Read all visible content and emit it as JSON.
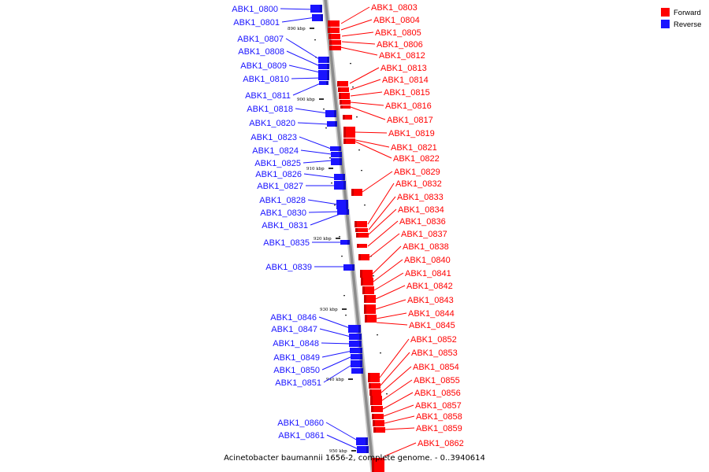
{
  "colors": {
    "forward": "#ff0000",
    "reverse": "#1a14ff",
    "axis": "#8c8c8c"
  },
  "legend": {
    "forward": "Forward",
    "reverse": "Reverse"
  },
  "caption": "Acinetobacter baumannii 1656-2, complete genome. - 0..3940614",
  "scale_ticks": [
    "890 kbp",
    "900 kbp",
    "910 kbp",
    "920 kbp",
    "930 kbp",
    "940 kbp",
    "950 kbp"
  ],
  "reverse_genes": [
    "ABK1_0800",
    "ABK1_0801",
    "ABK1_0807",
    "ABK1_0808",
    "ABK1_0809",
    "ABK1_0810",
    "ABK1_0811",
    "ABK1_0818",
    "ABK1_0820",
    "ABK1_0823",
    "ABK1_0824",
    "ABK1_0825",
    "ABK1_0826",
    "ABK1_0827",
    "ABK1_0828",
    "ABK1_0830",
    "ABK1_0831",
    "ABK1_0835",
    "ABK1_0839",
    "ABK1_0846",
    "ABK1_0847",
    "ABK1_0848",
    "ABK1_0849",
    "ABK1_0850",
    "ABK1_0851",
    "ABK1_0860",
    "ABK1_0861"
  ],
  "forward_genes": [
    "ABK1_0803",
    "ABK1_0804",
    "ABK1_0805",
    "ABK1_0806",
    "ABK1_0812",
    "ABK1_0813",
    "ABK1_0814",
    "ABK1_0815",
    "ABK1_0816",
    "ABK1_0817",
    "ABK1_0819",
    "ABK1_0821",
    "ABK1_0822",
    "ABK1_0829",
    "ABK1_0832",
    "ABK1_0833",
    "ABK1_0834",
    "ABK1_0836",
    "ABK1_0837",
    "ABK1_0838",
    "ABK1_0840",
    "ABK1_0841",
    "ABK1_0842",
    "ABK1_0843",
    "ABK1_0844",
    "ABK1_0845",
    "ABK1_0852",
    "ABK1_0853",
    "ABK1_0854",
    "ABK1_0855",
    "ABK1_0856",
    "ABK1_0857",
    "ABK1_0858",
    "ABK1_0859",
    "ABK1_0862"
  ]
}
